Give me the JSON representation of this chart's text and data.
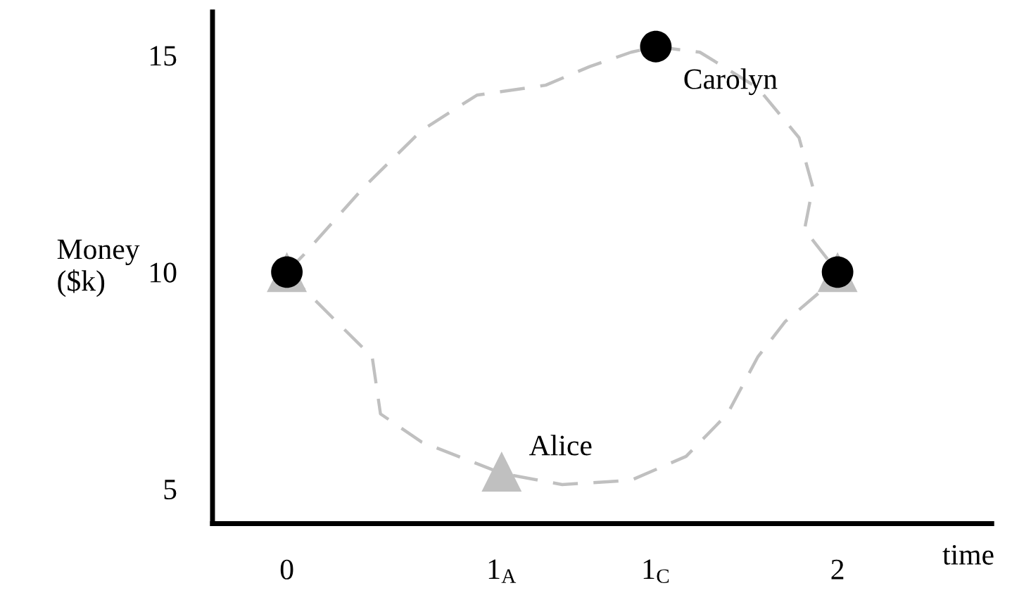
{
  "chart_data": {
    "type": "scatter",
    "ylabel": "Money\n($k)",
    "xlabel": "time",
    "xlim": [
      -0.27,
      2.56
    ],
    "ylim": [
      4.2,
      16
    ],
    "xticks": [
      0,
      {
        "value": 0.78,
        "label": "1$_{A}$"
      },
      {
        "value": 1.34,
        "label": "1$_{C}$"
      },
      2
    ],
    "yticks": [
      5,
      10,
      15
    ],
    "grid": false,
    "legend": false,
    "series": [
      {
        "type": "line",
        "line_style": "dashed",
        "marker": "none",
        "color": "#c0c0c0",
        "x": [
          0,
          0.06,
          0.28,
          0.49,
          0.69,
          0.94,
          1.1,
          1.25,
          1.34,
          1.5,
          1.71,
          1.86,
          1.91,
          1.88,
          1.96,
          2
        ],
        "values": [
          10,
          10.39,
          11.96,
          13.27,
          14.08,
          14.31,
          14.74,
          15.07,
          15.2,
          15.07,
          14.25,
          13.1,
          11.96,
          10.98,
          10.33,
          10
        ]
      },
      {
        "type": "line",
        "line_style": "dashed",
        "marker": "none",
        "color": "#c0c0c0",
        "x": [
          0,
          0.18,
          0.31,
          0.34,
          0.49,
          0.78,
          1.0,
          1.25,
          1.45,
          1.6,
          1.71,
          1.81,
          1.96,
          2
        ],
        "values": [
          10,
          8.86,
          8.04,
          6.73,
          6.08,
          5.36,
          5.1,
          5.2,
          5.75,
          6.73,
          8.04,
          8.86,
          9.67,
          10
        ]
      },
      {
        "name": "Alice",
        "marker": "triangle",
        "color": "#c0c0c0",
        "x": [
          0,
          0.78,
          2
        ],
        "values": [
          10,
          5.4,
          10
        ]
      },
      {
        "name": "Carolyn",
        "marker": "circle",
        "color": "#000000",
        "x": [
          0,
          1.34,
          2
        ],
        "values": [
          10,
          15.2,
          10
        ]
      }
    ]
  }
}
